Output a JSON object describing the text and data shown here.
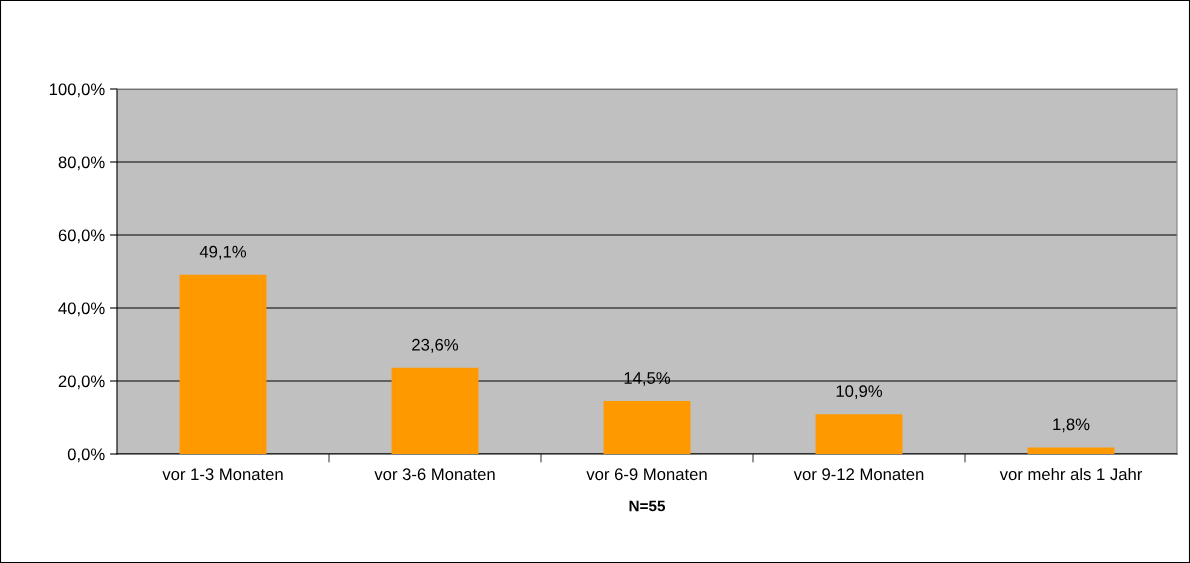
{
  "chart_data": {
    "type": "bar",
    "xlabel": "N=55",
    "categories": [
      "vor 1-3 Monaten",
      "vor 3-6 Monaten",
      "vor 6-9 Monaten",
      "vor 9-12 Monaten",
      "vor mehr als 1 Jahr"
    ],
    "values": [
      49.1,
      23.6,
      14.5,
      10.9,
      1.8
    ],
    "value_labels": [
      "49,1%",
      "23,6%",
      "14,5%",
      "10,9%",
      "1,8%"
    ],
    "color": "#ff9900",
    "ylim": [
      0,
      100
    ],
    "yticks": [
      {
        "value": 0,
        "label": "0,0%"
      },
      {
        "value": 20,
        "label": "20,0%"
      },
      {
        "value": 40,
        "label": "40,0%"
      },
      {
        "value": 60,
        "label": "60,0%"
      },
      {
        "value": 80,
        "label": "80,0%"
      },
      {
        "value": 100,
        "label": "100,0%"
      }
    ],
    "grid": "y"
  }
}
